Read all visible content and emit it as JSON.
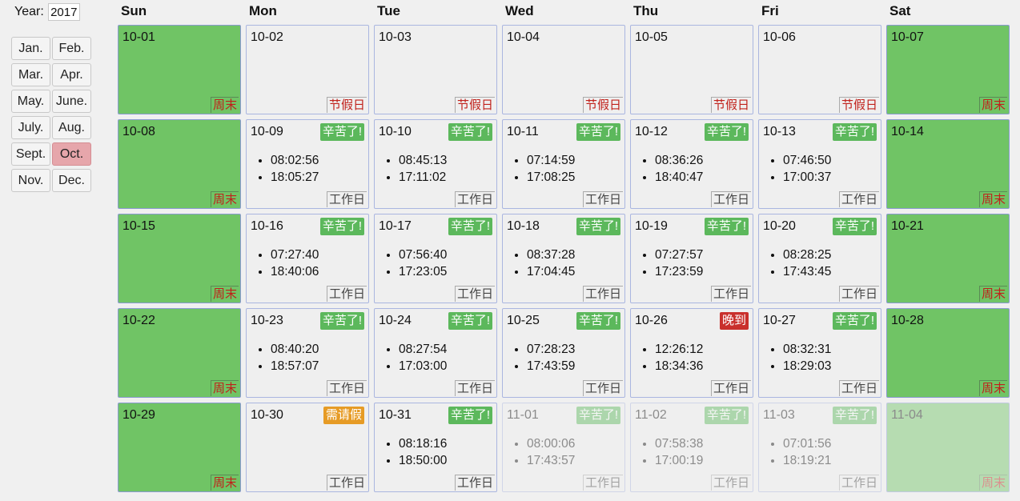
{
  "year": {
    "label": "Year:",
    "value": "2017"
  },
  "months": [
    "Jan.",
    "Feb.",
    "Mar.",
    "Apr.",
    "May.",
    "June.",
    "July.",
    "Aug.",
    "Sept.",
    "Oct.",
    "Nov.",
    "Dec."
  ],
  "active_month": "Oct.",
  "weekdays": [
    "Sun",
    "Mon",
    "Tue",
    "Wed",
    "Thu",
    "Fri",
    "Sat"
  ],
  "weeks": [
    [
      {
        "date": "10-01",
        "type": "weekend",
        "tag": "周末"
      },
      {
        "date": "10-02",
        "type": "holiday",
        "tag": "节假日"
      },
      {
        "date": "10-03",
        "type": "holiday",
        "tag": "节假日"
      },
      {
        "date": "10-04",
        "type": "holiday",
        "tag": "节假日"
      },
      {
        "date": "10-05",
        "type": "holiday",
        "tag": "节假日"
      },
      {
        "date": "10-06",
        "type": "holiday",
        "tag": "节假日"
      },
      {
        "date": "10-07",
        "type": "weekend",
        "tag": "周末"
      }
    ],
    [
      {
        "date": "10-08",
        "type": "weekend",
        "tag": "周末"
      },
      {
        "date": "10-09",
        "type": "workday",
        "tag": "工作日",
        "badge": "辛苦了!",
        "badge_type": "good",
        "times": [
          "08:02:56",
          "18:05:27"
        ]
      },
      {
        "date": "10-10",
        "type": "workday",
        "tag": "工作日",
        "badge": "辛苦了!",
        "badge_type": "good",
        "times": [
          "08:45:13",
          "17:11:02"
        ]
      },
      {
        "date": "10-11",
        "type": "workday",
        "tag": "工作日",
        "badge": "辛苦了!",
        "badge_type": "good",
        "times": [
          "07:14:59",
          "17:08:25"
        ]
      },
      {
        "date": "10-12",
        "type": "workday",
        "tag": "工作日",
        "badge": "辛苦了!",
        "badge_type": "good",
        "times": [
          "08:36:26",
          "18:40:47"
        ]
      },
      {
        "date": "10-13",
        "type": "workday",
        "tag": "工作日",
        "badge": "辛苦了!",
        "badge_type": "good",
        "times": [
          "07:46:50",
          "17:00:37"
        ]
      },
      {
        "date": "10-14",
        "type": "weekend",
        "tag": "周末"
      }
    ],
    [
      {
        "date": "10-15",
        "type": "weekend",
        "tag": "周末"
      },
      {
        "date": "10-16",
        "type": "workday",
        "tag": "工作日",
        "badge": "辛苦了!",
        "badge_type": "good",
        "times": [
          "07:27:40",
          "18:40:06"
        ]
      },
      {
        "date": "10-17",
        "type": "workday",
        "tag": "工作日",
        "badge": "辛苦了!",
        "badge_type": "good",
        "times": [
          "07:56:40",
          "17:23:05"
        ]
      },
      {
        "date": "10-18",
        "type": "workday",
        "tag": "工作日",
        "badge": "辛苦了!",
        "badge_type": "good",
        "times": [
          "08:37:28",
          "17:04:45"
        ]
      },
      {
        "date": "10-19",
        "type": "workday",
        "tag": "工作日",
        "badge": "辛苦了!",
        "badge_type": "good",
        "times": [
          "07:27:57",
          "17:23:59"
        ]
      },
      {
        "date": "10-20",
        "type": "workday",
        "tag": "工作日",
        "badge": "辛苦了!",
        "badge_type": "good",
        "times": [
          "08:28:25",
          "17:43:45"
        ]
      },
      {
        "date": "10-21",
        "type": "weekend",
        "tag": "周末"
      }
    ],
    [
      {
        "date": "10-22",
        "type": "weekend",
        "tag": "周末"
      },
      {
        "date": "10-23",
        "type": "workday",
        "tag": "工作日",
        "badge": "辛苦了!",
        "badge_type": "good",
        "times": [
          "08:40:20",
          "18:57:07"
        ]
      },
      {
        "date": "10-24",
        "type": "workday",
        "tag": "工作日",
        "badge": "辛苦了!",
        "badge_type": "good",
        "times": [
          "08:27:54",
          "17:03:00"
        ]
      },
      {
        "date": "10-25",
        "type": "workday",
        "tag": "工作日",
        "badge": "辛苦了!",
        "badge_type": "good",
        "times": [
          "07:28:23",
          "17:43:59"
        ]
      },
      {
        "date": "10-26",
        "type": "workday",
        "tag": "工作日",
        "badge": "晚到",
        "badge_type": "late",
        "times": [
          "12:26:12",
          "18:34:36"
        ]
      },
      {
        "date": "10-27",
        "type": "workday",
        "tag": "工作日",
        "badge": "辛苦了!",
        "badge_type": "good",
        "times": [
          "08:32:31",
          "18:29:03"
        ]
      },
      {
        "date": "10-28",
        "type": "weekend",
        "tag": "周末"
      }
    ],
    [
      {
        "date": "10-29",
        "type": "weekend",
        "tag": "周末"
      },
      {
        "date": "10-30",
        "type": "workday",
        "tag": "工作日",
        "badge": "需请假",
        "badge_type": "leave",
        "times": []
      },
      {
        "date": "10-31",
        "type": "workday",
        "tag": "工作日",
        "badge": "辛苦了!",
        "badge_type": "good",
        "times": [
          "08:18:16",
          "18:50:00"
        ]
      },
      {
        "date": "11-01",
        "type": "workday",
        "future": true,
        "tag": "工作日",
        "badge": "辛苦了!",
        "badge_type": "good",
        "times": [
          "08:00:06",
          "17:43:57"
        ]
      },
      {
        "date": "11-02",
        "type": "workday",
        "future": true,
        "tag": "工作日",
        "badge": "辛苦了!",
        "badge_type": "good",
        "times": [
          "07:58:38",
          "17:00:19"
        ]
      },
      {
        "date": "11-03",
        "type": "workday",
        "future": true,
        "tag": "工作日",
        "badge": "辛苦了!",
        "badge_type": "good",
        "times": [
          "07:01:56",
          "18:19:21"
        ]
      },
      {
        "date": "11-04",
        "type": "weekend",
        "future": true,
        "tag": "周末"
      }
    ]
  ]
}
